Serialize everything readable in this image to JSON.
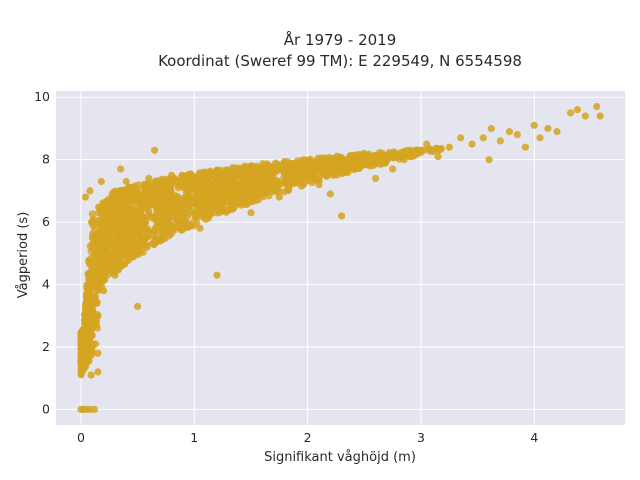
{
  "chart_data": {
    "type": "scatter",
    "title": "År 1979 - 2019",
    "subtitle": "Koordinat (Sweref 99 TM): E 229549, N 6554598",
    "xlabel": "Signifikant våghöjd (m)",
    "ylabel": "Vågperiod (s)",
    "xlim": [
      -0.22,
      4.8
    ],
    "ylim": [
      -0.5,
      10.2
    ],
    "x_ticks": [
      "0",
      "1",
      "2",
      "3",
      "4"
    ],
    "y_ticks": [
      "0",
      "2",
      "4",
      "6",
      "8",
      "10"
    ],
    "grid": true,
    "legend": "none",
    "point_color": "#D4A420",
    "background_color": "#E5E5EF",
    "series": [
      {
        "x": [
          0.0,
          0.02,
          0.05,
          0.08,
          0.12,
          0.03,
          0.06,
          0.1,
          0.15,
          0.2,
          0.04,
          0.08,
          0.13,
          0.18,
          0.25,
          0.3,
          0.1,
          0.15,
          0.22,
          0.3,
          0.35,
          0.4,
          0.2,
          0.28,
          0.36,
          0.45,
          0.5,
          0.55,
          0.6,
          0.3,
          0.42,
          0.55,
          0.7,
          0.75,
          0.8,
          0.5,
          0.65,
          0.82,
          0.95,
          1.0,
          1.1,
          0.7,
          0.9,
          1.15,
          1.3,
          1.4,
          1.5,
          1.05,
          1.25,
          1.6,
          1.8,
          1.9,
          2.0,
          1.5,
          1.75,
          2.1,
          2.3,
          2.4,
          2.5,
          2.2,
          2.6,
          2.75,
          2.85,
          2.95,
          3.05,
          3.15,
          3.25,
          3.35,
          3.45,
          3.55,
          3.62,
          3.7,
          3.78,
          3.85,
          3.92,
          4.0,
          4.05,
          4.12,
          4.2,
          4.32,
          4.38,
          4.45,
          4.55,
          4.58,
          0.09,
          0.15,
          1.2,
          2.3,
          3.6,
          0.5,
          0.18,
          0.35,
          0.65
        ],
        "y": [
          0.0,
          0.0,
          0.0,
          0.0,
          0.0,
          2.0,
          2.6,
          3.1,
          1.2,
          5.0,
          6.8,
          7.0,
          4.2,
          5.5,
          6.0,
          6.9,
          3.0,
          4.4,
          5.2,
          6.5,
          7.0,
          7.3,
          3.8,
          4.9,
          5.6,
          6.3,
          6.8,
          7.1,
          7.4,
          4.3,
          5.2,
          5.9,
          6.5,
          7.0,
          7.5,
          5.0,
          5.7,
          6.3,
          6.9,
          7.2,
          7.6,
          5.4,
          6.0,
          6.6,
          7.0,
          7.4,
          7.8,
          5.8,
          6.4,
          6.9,
          7.3,
          7.7,
          7.9,
          6.3,
          6.8,
          7.2,
          7.6,
          8.0,
          8.2,
          6.9,
          7.4,
          7.7,
          8.0,
          8.3,
          8.5,
          8.1,
          8.4,
          8.7,
          8.5,
          8.7,
          9.0,
          8.6,
          8.9,
          8.8,
          8.4,
          9.1,
          8.7,
          9.0,
          8.9,
          9.5,
          9.6,
          9.4,
          9.7,
          9.4,
          1.1,
          1.8,
          4.3,
          6.2,
          8.0,
          3.3,
          7.3,
          7.7,
          8.3
        ]
      }
    ]
  }
}
